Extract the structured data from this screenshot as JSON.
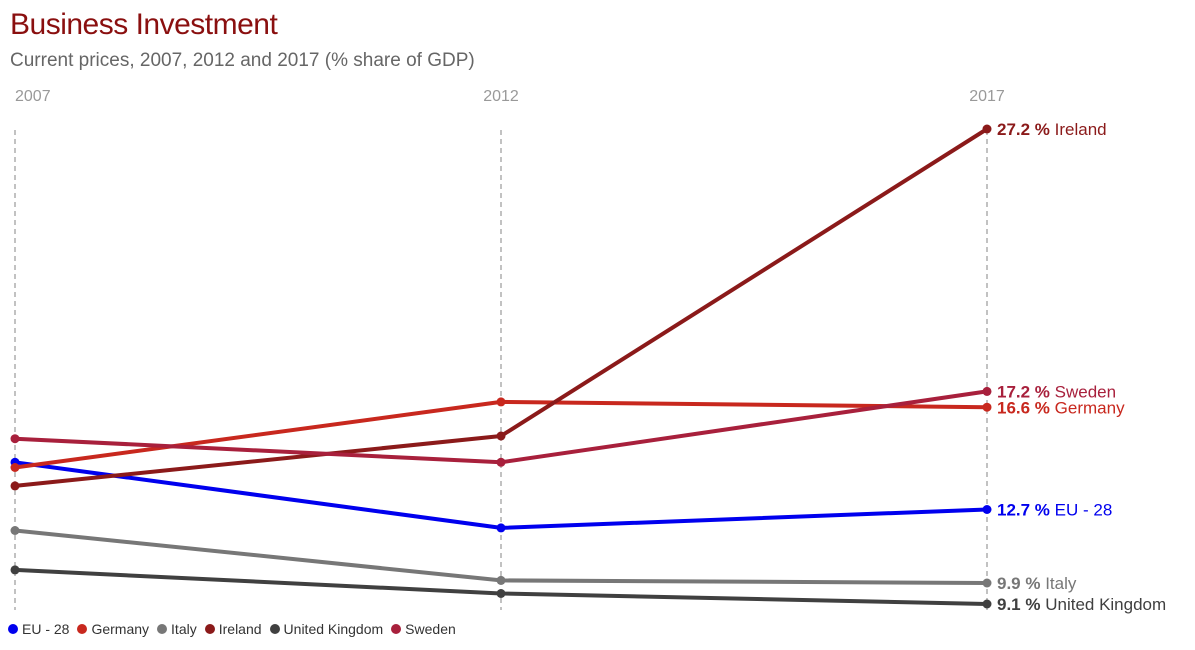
{
  "chart_data": {
    "type": "line",
    "title": "Business Investment",
    "subtitle": "Current prices, 2007, 2012 and 2017 (% share of GDP)",
    "x": [
      "2007",
      "2012",
      "2017"
    ],
    "ylim": [
      8,
      28
    ],
    "grid": "vertical dashed lines at each year",
    "legend": "bottom-left",
    "value_suffix": " %",
    "series": [
      {
        "name": "EU - 28",
        "color": "#0000ee",
        "values": [
          14.5,
          12.0,
          12.7
        ],
        "end_label": "12.7 %"
      },
      {
        "name": "Germany",
        "color": "#c8281e",
        "values": [
          14.3,
          16.8,
          16.6
        ],
        "end_label": "16.6 %"
      },
      {
        "name": "Italy",
        "color": "#777777",
        "values": [
          11.9,
          10.0,
          9.9
        ],
        "end_label": "9.9 %"
      },
      {
        "name": "Ireland",
        "color": "#8b1a1a",
        "values": [
          13.6,
          15.5,
          27.2
        ],
        "end_label": "27.2 %"
      },
      {
        "name": "United Kingdom",
        "color": "#404040",
        "values": [
          10.4,
          9.5,
          9.1
        ],
        "end_label": "9.1 %"
      },
      {
        "name": "Sweden",
        "color": "#a8203c",
        "values": [
          15.4,
          14.5,
          17.2
        ],
        "end_label": "17.2 %"
      }
    ]
  }
}
